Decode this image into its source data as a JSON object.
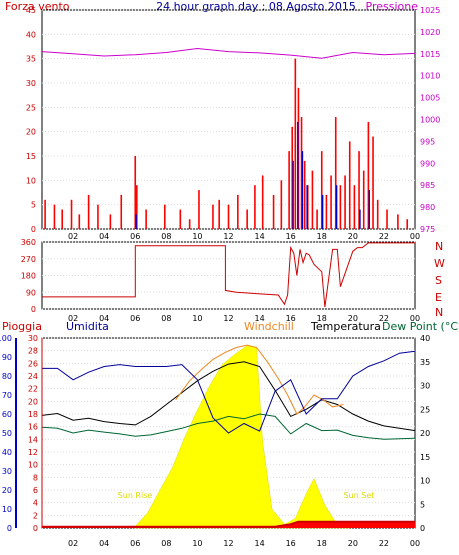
{
  "header": {
    "left_title": "Forza vento",
    "center_title": "24 hour graph day : 08 Agosto 2015",
    "right_title": "Pressione"
  },
  "middle": {
    "cardinal_labels": [
      "N",
      "W",
      "S",
      "E",
      "N"
    ]
  },
  "bottom_header": {
    "rain_label": "Pioggia",
    "humidity_label": "Umidita",
    "windchill_label": "Windchill",
    "temperature_label": "Temperatura",
    "dewpoint_label": "Dew Point (°C"
  },
  "annotations": {
    "sunrise": "Sun Rise",
    "sunset": "Sun Set"
  },
  "colors": {
    "wind": "#ff0000",
    "gust": "#0000cc",
    "wind_green": "#008800",
    "pressure": "#cc00cc",
    "direction": "#cc0000",
    "rain": "#cc0000",
    "humidity": "#000099",
    "windchill": "#ee8822",
    "temperature": "#000000",
    "dewpoint": "#006633",
    "solar": "#ffff00",
    "rain_fill": "#ff0000"
  },
  "chart_data": [
    {
      "type": "bar",
      "panel": "wind_pressure",
      "x_ticks": [
        "02",
        "04",
        "06",
        "08",
        "10",
        "12",
        "14",
        "16",
        "18",
        "20",
        "22",
        "00"
      ],
      "y_left_ticks": [
        "0",
        "5",
        "10",
        "15",
        "20",
        "25",
        "30",
        "35",
        "40",
        "45"
      ],
      "y_left_range": [
        0,
        45
      ],
      "y_right_ticks": [
        "975",
        "980",
        "985",
        "990",
        "995",
        "1000",
        "1005",
        "1010",
        "1015",
        "1020",
        "1025"
      ],
      "y_right_range": [
        975,
        1025
      ],
      "wind_speed": {
        "hours": [
          0.2,
          0.8,
          1.3,
          1.9,
          2.4,
          3.0,
          3.6,
          4.4,
          5.1,
          6.0,
          6.1,
          6.7,
          7.9,
          8.9,
          9.5,
          10.1,
          11.0,
          11.4,
          12.0,
          12.6,
          13.2,
          13.7,
          14.2,
          14.9,
          15.4,
          15.9,
          16.1,
          16.3,
          16.5,
          16.7,
          16.9,
          17.1,
          17.4,
          17.7,
          18.0,
          18.3,
          18.6,
          18.9,
          19.2,
          19.5,
          19.8,
          20.1,
          20.4,
          20.7,
          21.0,
          21.3,
          21.6,
          22.2,
          22.9,
          23.5
        ],
        "values": [
          6,
          5,
          4,
          6,
          3,
          7,
          5,
          3,
          7,
          15,
          9,
          4,
          5,
          4,
          2,
          8,
          5,
          6,
          5,
          7,
          4,
          9,
          11,
          7,
          10,
          16,
          21,
          35,
          29,
          23,
          14,
          9,
          12,
          4,
          16,
          7,
          11,
          23,
          9,
          11,
          18,
          9,
          16,
          12,
          22,
          19,
          6,
          4,
          3,
          2
        ]
      },
      "gust": {
        "hours": [
          6.0,
          16.1,
          16.4,
          16.7,
          17.0,
          18.0,
          18.9,
          20.4,
          21.0
        ],
        "values": [
          3,
          14,
          22,
          16,
          9,
          7,
          9,
          4,
          8
        ]
      },
      "pressure": {
        "hours": [
          0,
          2,
          4,
          6,
          8,
          10,
          12,
          14,
          16,
          18,
          20,
          22,
          24
        ],
        "values": [
          1015.5,
          1015.0,
          1014.5,
          1014.8,
          1015.3,
          1016.2,
          1015.5,
          1015.2,
          1014.7,
          1014.0,
          1015.3,
          1014.8,
          1015.1
        ]
      }
    },
    {
      "type": "line",
      "panel": "wind_direction",
      "x_ticks": [
        "02",
        "04",
        "06",
        "08",
        "10",
        "12",
        "14",
        "16",
        "18",
        "20",
        "22",
        "00"
      ],
      "y_ticks": [
        "0",
        "90",
        "180",
        "270",
        "360"
      ],
      "y_range": [
        0,
        360
      ],
      "direction": {
        "hours": [
          0,
          6.0,
          6.0,
          11.8,
          11.8,
          12.5,
          15.2,
          15.6,
          15.8,
          16.0,
          16.2,
          16.4,
          16.6,
          16.8,
          17.0,
          17.2,
          17.5,
          18.0,
          18.2,
          18.7,
          19.0,
          19.2,
          20.0,
          20.3,
          20.6,
          21.0,
          24
        ],
        "values": [
          65,
          65,
          340,
          340,
          100,
          90,
          75,
          25,
          75,
          330,
          300,
          180,
          320,
          250,
          300,
          290,
          240,
          200,
          10,
          320,
          320,
          120,
          310,
          330,
          330,
          355,
          355
        ]
      }
    },
    {
      "type": "line",
      "panel": "temp_humidity_rain_solar",
      "x_ticks": [
        "02",
        "04",
        "06",
        "08",
        "10",
        "12",
        "14",
        "16",
        "18",
        "20",
        "22",
        "00"
      ],
      "y_rain_ticks": [
        "0",
        "2",
        "4",
        "6",
        "8",
        "10",
        "12",
        "14",
        "16",
        "18",
        "20",
        "22",
        "24",
        "26",
        "28",
        "30"
      ],
      "y_rain_range": [
        0,
        30
      ],
      "y_humidity_ticks": [
        "0",
        "10",
        "20",
        "30",
        "40",
        "50",
        "60",
        "70",
        "80",
        "90",
        "100"
      ],
      "y_humidity_range": [
        0,
        100
      ],
      "y_temp_ticks": [
        "0",
        "5",
        "10",
        "15",
        "20",
        "25",
        "30",
        "35",
        "40"
      ],
      "y_temp_range": [
        0,
        40
      ],
      "humidity": {
        "hours": [
          0,
          1,
          2,
          3,
          4,
          5,
          6,
          7,
          8,
          9,
          10,
          11,
          12,
          13,
          14,
          15,
          16,
          17,
          18,
          19,
          20,
          21,
          22,
          23,
          24
        ],
        "values": [
          84,
          84,
          78,
          82,
          85,
          86,
          85,
          85,
          85,
          86,
          78,
          58,
          50,
          55,
          51,
          72,
          78,
          60,
          68,
          68,
          80,
          85,
          88,
          92,
          93
        ]
      },
      "temperature": {
        "hours": [
          0,
          1,
          2,
          3,
          4,
          5,
          6,
          7,
          8,
          9,
          10,
          11,
          12,
          13,
          14,
          15,
          16,
          17,
          18,
          19,
          20,
          21,
          22,
          23,
          24
        ],
        "values": [
          23.7,
          24.1,
          22.7,
          23.1,
          22.4,
          22.0,
          21.7,
          23.5,
          26.0,
          28.5,
          31.0,
          33.0,
          34.5,
          35.0,
          34.0,
          29.0,
          23.5,
          25.0,
          27.0,
          26.0,
          24.0,
          22.5,
          21.5,
          21.0,
          20.5
        ]
      },
      "windchill": {
        "hours": [
          8.6,
          9.5,
          10.3,
          11.0,
          11.8,
          12.5,
          13.2,
          13.8,
          14.5,
          15.2,
          15.8,
          16.4,
          16.9,
          17.5,
          18.1,
          18.7,
          19.4
        ],
        "values": [
          27.0,
          31.0,
          33.5,
          35.5,
          37.0,
          38.0,
          38.5,
          38.0,
          35.0,
          31.5,
          28.0,
          24.0,
          25.5,
          28.0,
          27.0,
          25.5,
          26.0
        ]
      },
      "dewpoint": {
        "hours": [
          0,
          1,
          2,
          3,
          4,
          5,
          6,
          7,
          8,
          9,
          10,
          11,
          12,
          13,
          14,
          15,
          16,
          17,
          18,
          19,
          20,
          21,
          22,
          23,
          24
        ],
        "values": [
          21.2,
          21.0,
          20.0,
          20.6,
          20.2,
          19.8,
          19.3,
          19.6,
          20.3,
          21.0,
          22.0,
          22.5,
          23.5,
          23.0,
          24.0,
          23.5,
          19.8,
          22.0,
          20.5,
          20.6,
          19.5,
          19.0,
          18.7,
          18.8,
          18.9
        ]
      },
      "solar_rel": {
        "hours": [
          5.9,
          6.8,
          7.6,
          8.4,
          9.2,
          10.0,
          10.8,
          11.6,
          12.5,
          13.2,
          13.8,
          14.2,
          14.8,
          15.6,
          16.3,
          17.0,
          17.5,
          18.2,
          18.9,
          19.8
        ],
        "values": [
          0,
          0.08,
          0.2,
          0.32,
          0.48,
          0.62,
          0.75,
          0.86,
          0.92,
          0.96,
          0.95,
          0.45,
          0.1,
          0.02,
          0.05,
          0.18,
          0.26,
          0.12,
          0.03,
          0
        ]
      },
      "rain": {
        "hours": [
          0,
          15.0,
          16.0,
          16.5,
          24
        ],
        "values": [
          0.2,
          0.2,
          0.6,
          1.0,
          1.0
        ]
      }
    }
  ]
}
